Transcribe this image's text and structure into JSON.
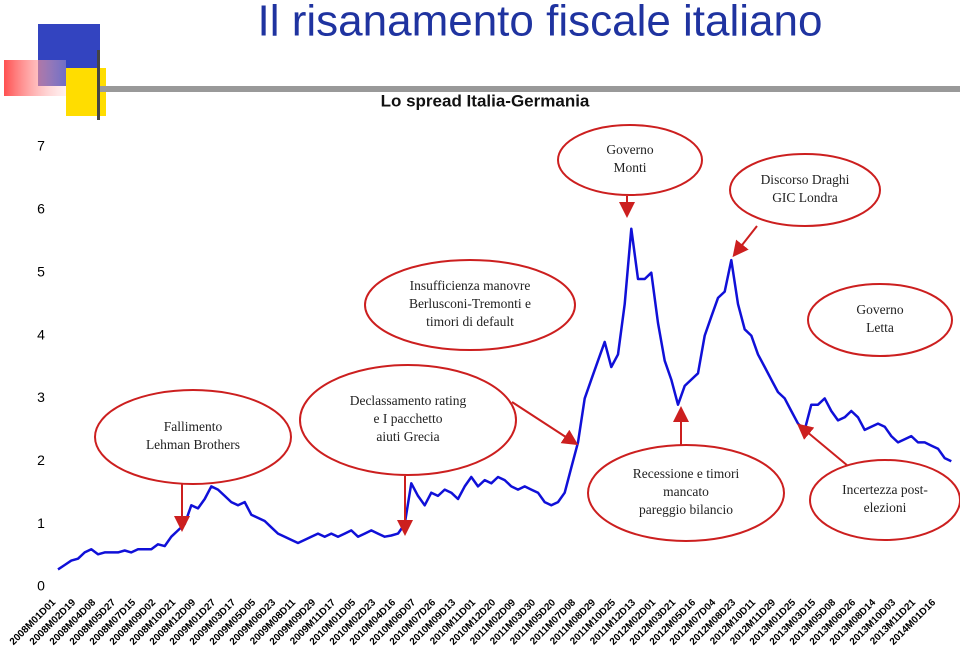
{
  "title": "Il risanamento fiscale italiano",
  "chart_data": {
    "type": "line",
    "title": "Lo spread Italia-Germania",
    "color": "#1010d8",
    "ylim": [
      0,
      7
    ],
    "yticks": [
      0,
      1,
      2,
      3,
      4,
      5,
      6,
      7
    ],
    "categories": [
      "2008M01D01",
      null,
      null,
      "2008M02D19",
      null,
      null,
      "2008M04D08",
      null,
      null,
      "2008M05D27",
      null,
      null,
      "2008M07D15",
      null,
      null,
      "2008M09D02",
      null,
      null,
      "2008M10D21",
      null,
      null,
      "2008M12D09",
      null,
      null,
      "2009M01D27",
      null,
      null,
      "2009M03D17",
      null,
      null,
      "2009M05D05",
      null,
      null,
      "2009M06D23",
      null,
      null,
      "2009M08D11",
      null,
      null,
      "2009M09D29",
      null,
      null,
      "2009M11D17",
      null,
      null,
      "2010M01D05",
      null,
      null,
      "2010M02D23",
      null,
      null,
      "2010M04D16",
      null,
      null,
      "2010M06D07",
      null,
      null,
      "2010M07D26",
      null,
      null,
      "2010M09D13",
      null,
      null,
      "2010M11D01",
      null,
      null,
      "2010M12D20",
      null,
      null,
      "2011M02D09",
      null,
      null,
      "2011M03D30",
      null,
      null,
      "2011M05D20",
      null,
      null,
      "2011M07D08",
      null,
      null,
      "2011M08D29",
      null,
      null,
      "2011M10D25",
      null,
      null,
      "2011M12D13",
      null,
      null,
      "2012M02D01",
      null,
      null,
      "2012M03D21",
      null,
      null,
      "2012M05D16",
      null,
      null,
      "2012M07D04",
      null,
      null,
      "2012M08D23",
      null,
      null,
      "2012M10D11",
      null,
      null,
      "2012M11D29",
      null,
      null,
      "2013M01D25",
      null,
      null,
      "2013M03D15",
      null,
      null,
      "2013M05D08",
      null,
      null,
      "2013M06D26",
      null,
      null,
      "2013M08D14",
      null,
      null,
      "2013M10D03",
      null,
      null,
      "2013M11D21",
      null,
      null,
      "2014M01D16",
      null,
      null
    ],
    "values": [
      0.28,
      0.35,
      0.42,
      0.45,
      0.55,
      0.6,
      0.52,
      0.55,
      0.55,
      0.55,
      0.58,
      0.55,
      0.6,
      0.6,
      0.6,
      0.68,
      0.65,
      0.8,
      0.9,
      1.0,
      1.3,
      1.25,
      1.4,
      1.6,
      1.55,
      1.45,
      1.35,
      1.3,
      1.35,
      1.15,
      1.1,
      1.05,
      0.95,
      0.85,
      0.8,
      0.75,
      0.7,
      0.75,
      0.8,
      0.85,
      0.8,
      0.85,
      0.8,
      0.85,
      0.9,
      0.8,
      0.85,
      0.9,
      0.85,
      0.8,
      0.82,
      0.85,
      1.0,
      1.65,
      1.45,
      1.3,
      1.5,
      1.45,
      1.55,
      1.5,
      1.4,
      1.6,
      1.75,
      1.6,
      1.7,
      1.65,
      1.75,
      1.7,
      1.6,
      1.55,
      1.6,
      1.55,
      1.5,
      1.35,
      1.3,
      1.35,
      1.5,
      1.9,
      2.3,
      3.0,
      3.3,
      3.6,
      3.9,
      3.5,
      3.7,
      4.5,
      5.7,
      4.9,
      4.9,
      5.0,
      4.2,
      3.6,
      3.3,
      2.9,
      3.2,
      3.3,
      3.4,
      4.0,
      4.3,
      4.6,
      4.7,
      5.2,
      4.5,
      4.1,
      4.0,
      3.7,
      3.5,
      3.3,
      3.1,
      3.0,
      2.8,
      2.6,
      2.5,
      2.9,
      2.9,
      3.0,
      2.8,
      2.65,
      2.7,
      2.8,
      2.7,
      2.5,
      2.55,
      2.6,
      2.55,
      2.4,
      2.3,
      2.35,
      2.4,
      2.3,
      2.3,
      2.25,
      2.2,
      2.05,
      2.0
    ],
    "annotations": [
      {
        "lines": [
          "Governo",
          "Monti"
        ]
      },
      {
        "lines": [
          "Discorso Draghi",
          "GIC Londra"
        ]
      },
      {
        "lines": [
          "Insufficienza manovre",
          "Berlusconi-Tremonti e",
          "timori di default"
        ]
      },
      {
        "lines": [
          "Governo",
          "Letta"
        ]
      },
      {
        "lines": [
          "Fallimento",
          "Lehman Brothers"
        ]
      },
      {
        "lines": [
          "Declassamento rating",
          "e I pacchetto",
          "aiuti Grecia"
        ]
      },
      {
        "lines": [
          "Recessione e timori",
          "mancato",
          "pareggio bilancio"
        ]
      },
      {
        "lines": [
          "Incertezza post-",
          "elezioni"
        ]
      }
    ]
  }
}
